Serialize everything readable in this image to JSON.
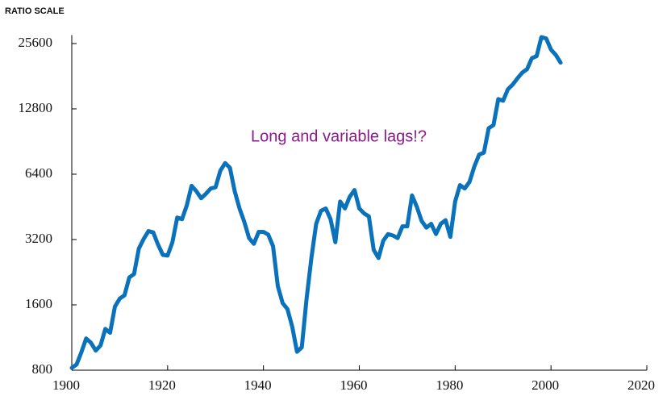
{
  "chart_data": {
    "type": "line",
    "y_axis_label": "RATIO SCALE",
    "annotation": "Long and variable lags!?",
    "x": [
      1900,
      1901,
      1902,
      1903,
      1904,
      1905,
      1906,
      1907,
      1908,
      1909,
      1910,
      1911,
      1912,
      1913,
      1914,
      1915,
      1916,
      1917,
      1918,
      1919,
      1920,
      1921,
      1922,
      1923,
      1924,
      1925,
      1926,
      1927,
      1928,
      1929,
      1930,
      1931,
      1932,
      1933,
      1934,
      1935,
      1936,
      1937,
      1938,
      1939,
      1940,
      1941,
      1942,
      1943,
      1944,
      1945,
      1946,
      1947,
      1948,
      1949,
      1950,
      1951,
      1952,
      1953,
      1954,
      1955,
      1956,
      1957,
      1958,
      1959,
      1960,
      1961,
      1962,
      1963,
      1964,
      1965,
      1966,
      1967,
      1968,
      1969,
      1970,
      1971,
      1972,
      1973,
      1974,
      1975,
      1976,
      1977,
      1978,
      1979,
      1980,
      1981,
      1982,
      1983,
      1984,
      1985,
      1986,
      1987,
      1988,
      1989,
      1990,
      1991,
      1992,
      1993,
      1994,
      1995,
      1996,
      1997,
      1998,
      1999,
      2000,
      2001,
      2002
    ],
    "values": [
      820,
      850,
      967,
      1120,
      1070,
      985,
      1040,
      1240,
      1190,
      1570,
      1710,
      1770,
      2140,
      2220,
      2910,
      3220,
      3500,
      3450,
      3030,
      2720,
      2700,
      3110,
      4040,
      3970,
      4600,
      5660,
      5340,
      4960,
      5200,
      5500,
      5570,
      6640,
      7200,
      6850,
      5340,
      4450,
      3860,
      3250,
      3060,
      3470,
      3470,
      3370,
      2980,
      1950,
      1630,
      1530,
      1270,
      973,
      1020,
      1710,
      2630,
      3780,
      4340,
      4450,
      3970,
      3110,
      4790,
      4450,
      5040,
      5410,
      4450,
      4220,
      4090,
      2870,
      2630,
      3160,
      3390,
      3340,
      3250,
      3680,
      3680,
      5110,
      4530,
      3900,
      3630,
      3780,
      3390,
      3780,
      3930,
      3290,
      4790,
      5700,
      5500,
      5900,
      6940,
      7870,
      8050,
      10430,
      10780,
      14200,
      13950,
      15750,
      16560,
      17700,
      18800,
      19490,
      21900,
      22400,
      27400,
      27000,
      24000,
      22700,
      20900
    ],
    "color": "#0a72ba",
    "xlim": [
      1900,
      2020
    ],
    "xticks": [
      1900,
      1920,
      1940,
      1960,
      1980,
      2000,
      2020
    ],
    "ylim": [
      800,
      28000
    ],
    "yticks": [
      800,
      1600,
      3200,
      6400,
      12800,
      25600
    ],
    "log_y": true,
    "grid": false
  }
}
